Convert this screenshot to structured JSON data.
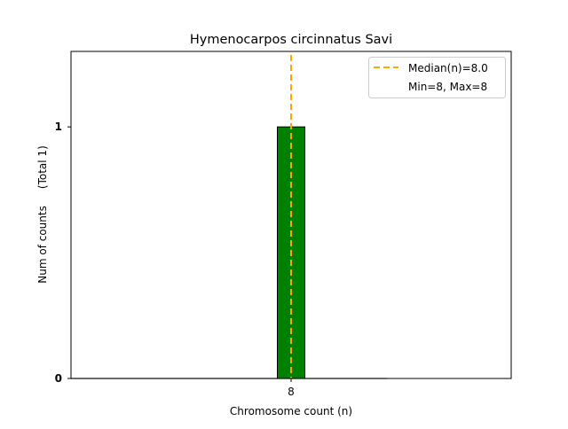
{
  "chart_data": {
    "type": "bar",
    "title": "Hymenocarpos circinnatus Savi",
    "xlabel": "Chromosome count (n)",
    "ylabel": "Num of counts     (Total 1)",
    "categories": [
      8
    ],
    "values": [
      1
    ],
    "bar_width": 0.2,
    "xlim": [
      6.4,
      9.6
    ],
    "ylim": [
      0,
      1.3
    ],
    "xticks": [
      {
        "value": 8,
        "label": "8"
      }
    ],
    "yticks": [
      {
        "value": 0,
        "label": "0"
      },
      {
        "value": 1,
        "label": "1"
      }
    ],
    "median": 8.0,
    "grid": false,
    "legend": {
      "placement": "top-right",
      "entries": [
        "Median(n)=8.0",
        "Min=8, Max=8"
      ]
    },
    "colors": {
      "bar": "#008000",
      "median": "#ffa500",
      "edge": "#000000"
    }
  }
}
